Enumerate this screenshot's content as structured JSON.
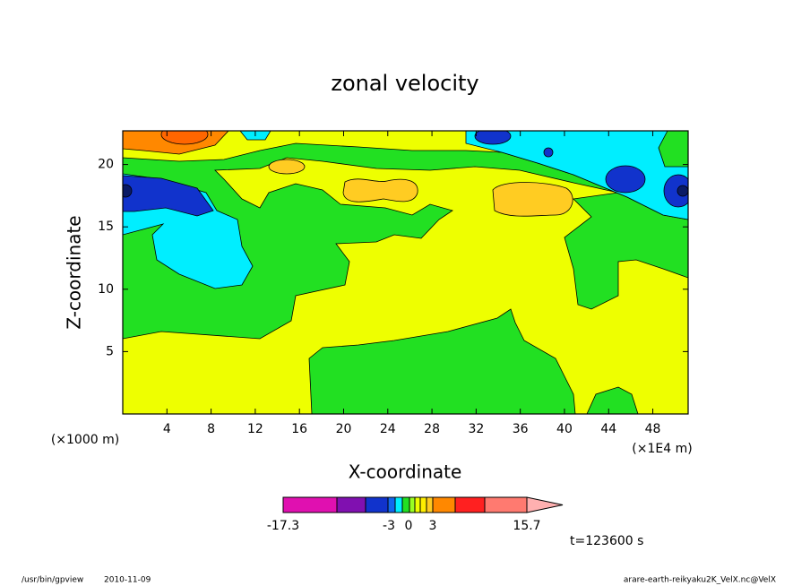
{
  "chart_data": {
    "type": "contour",
    "title": "zonal velocity",
    "xlabel": "X-coordinate",
    "ylabel": "Z-coordinate",
    "xunit_left": "(×1000 m)",
    "xunit_right": "(×1E4 m)",
    "xlim": [
      0,
      51.2
    ],
    "xticks": [
      4,
      8,
      12,
      16,
      20,
      24,
      28,
      32,
      36,
      40,
      44,
      48
    ],
    "ylim": [
      0,
      22.7
    ],
    "yticks": [
      5,
      10,
      15,
      20
    ],
    "colorbar_labels": [
      -17.3,
      -3,
      0,
      3,
      15.7
    ],
    "annotation": "t=123600 s"
  },
  "footer": {
    "left": "/usr/bin/gpview",
    "date": "2010-11-09",
    "right": "arare-earth-reikyaku2K_VelX.nc@VelX"
  }
}
